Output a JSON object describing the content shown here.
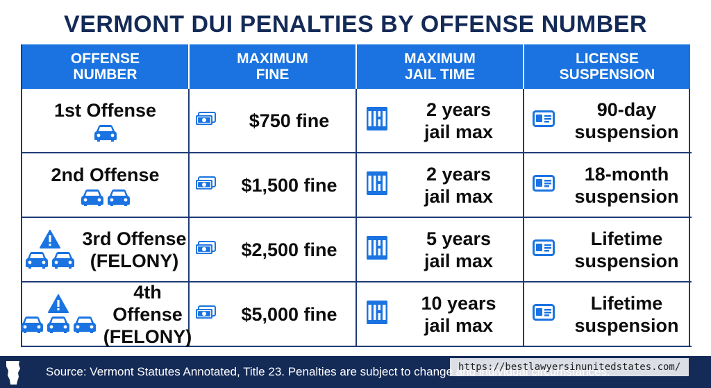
{
  "title": "VERMONT DUI PENALTIES BY OFFENSE NUMBER",
  "headers": [
    "OFFENSE\nNUMBER",
    "MAXIMUM\nFINE",
    "MAXIMUM\nJAIL TIME",
    "LICENSE\nSUSPENSION"
  ],
  "rows": [
    {
      "offense": "1st Offense",
      "felony": "",
      "fine": "$750 fine",
      "jail": "2 years\njail max",
      "license": "90-day\nsuspension",
      "car_count": 1,
      "warning": false
    },
    {
      "offense": "2nd Offense",
      "felony": "",
      "fine": "$1,500 fine",
      "jail": "2 years\njail max",
      "license": "18-month\nsuspension",
      "car_count": 2,
      "warning": false
    },
    {
      "offense": "3rd Offense",
      "felony": "(FELONY)",
      "fine": "$2,500 fine",
      "jail": "5 years\njail max",
      "license": "Lifetime\nsuspension",
      "car_count": 2,
      "warning": true
    },
    {
      "offense": "4th Offense",
      "felony": "(FELONY)",
      "fine": "$5,000 fine",
      "jail": "10 years\njail max",
      "license": "Lifetime\nsuspension",
      "car_count": 3,
      "warning": true
    }
  ],
  "footer": {
    "source": "Source: Vermont Statutes Annotated, Title 23. Penalties are subject to change and individual circumstances."
  },
  "watermark": "https://bestlawyersinunitedstates.com/",
  "colors": {
    "header_blue": "#1a73e0",
    "navy": "#142a57",
    "icon_blue": "#1a73e0",
    "warning_blue": "#1a73e0"
  }
}
